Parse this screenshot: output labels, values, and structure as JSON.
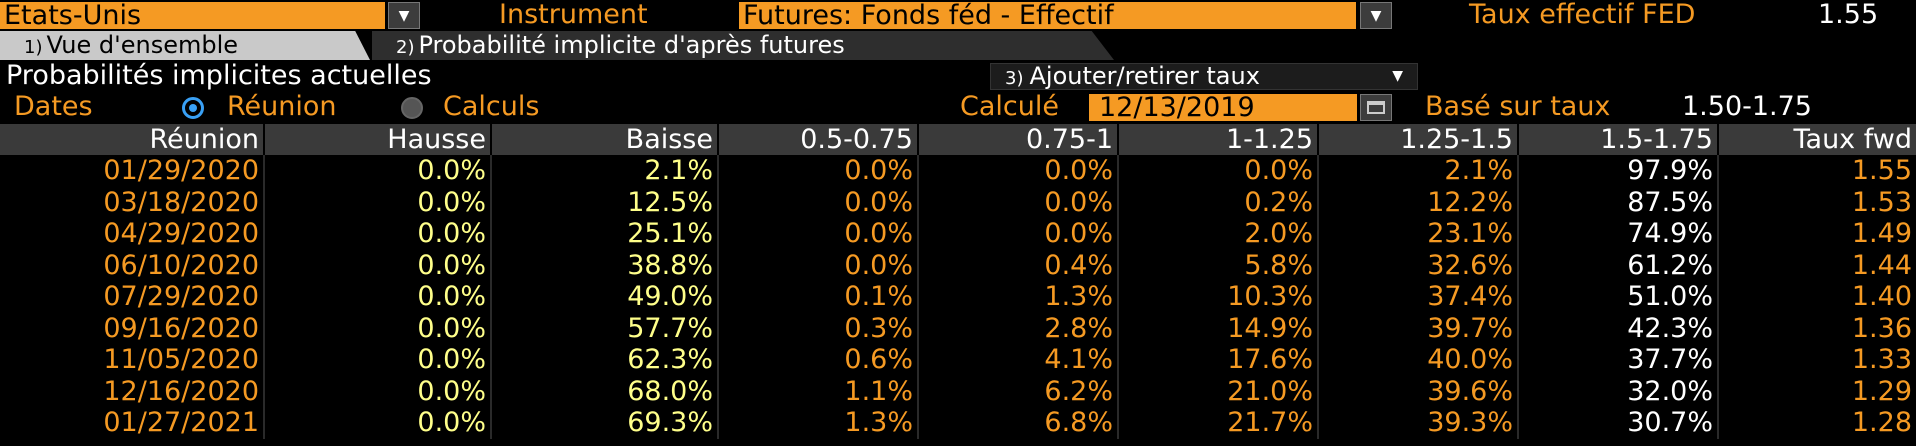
{
  "topbar": {
    "region_value": "Etats-Unis",
    "instrument_label": "Instrument",
    "instrument_value": "Futures: Fonds féd - Effectif",
    "fed_rate_label": "Taux effectif FED",
    "fed_rate_value": "1.55"
  },
  "tabs": [
    {
      "num": "1)",
      "label": "Vue d'ensemble"
    },
    {
      "num": "2)",
      "label": "Probabilité implicite d'après futures"
    }
  ],
  "section": {
    "title": "Probabilités implicites actuelles",
    "menu_num": "3)",
    "menu_label": "Ajouter/retirer taux",
    "menu_caret": "▼"
  },
  "options": {
    "dates_label": "Dates",
    "radio_reunion": "Réunion",
    "radio_calculs": "Calculs",
    "calc_label": "Calculé",
    "calc_date": "12/13/2019",
    "base_label": "Basé sur taux",
    "base_value": "1.50-1.75"
  },
  "table": {
    "headers": [
      "Réunion",
      "Hausse",
      "Baisse",
      "0.5-0.75",
      "0.75-1",
      "1-1.25",
      "1.25-1.5",
      "1.5-1.75",
      "Taux fwd"
    ],
    "rows": [
      [
        "01/29/2020",
        "0.0%",
        "2.1%",
        "0.0%",
        "0.0%",
        "0.0%",
        "2.1%",
        "97.9%",
        "1.55"
      ],
      [
        "03/18/2020",
        "0.0%",
        "12.5%",
        "0.0%",
        "0.0%",
        "0.2%",
        "12.2%",
        "87.5%",
        "1.53"
      ],
      [
        "04/29/2020",
        "0.0%",
        "25.1%",
        "0.0%",
        "0.0%",
        "2.0%",
        "23.1%",
        "74.9%",
        "1.49"
      ],
      [
        "06/10/2020",
        "0.0%",
        "38.8%",
        "0.0%",
        "0.4%",
        "5.8%",
        "32.6%",
        "61.2%",
        "1.44"
      ],
      [
        "07/29/2020",
        "0.0%",
        "49.0%",
        "0.1%",
        "1.3%",
        "10.3%",
        "37.4%",
        "51.0%",
        "1.40"
      ],
      [
        "09/16/2020",
        "0.0%",
        "57.7%",
        "0.3%",
        "2.8%",
        "14.9%",
        "39.7%",
        "42.3%",
        "1.36"
      ],
      [
        "11/05/2020",
        "0.0%",
        "62.3%",
        "0.6%",
        "4.1%",
        "17.6%",
        "40.0%",
        "37.7%",
        "1.33"
      ],
      [
        "12/16/2020",
        "0.0%",
        "68.0%",
        "1.1%",
        "6.2%",
        "21.0%",
        "39.6%",
        "32.0%",
        "1.29"
      ],
      [
        "01/27/2021",
        "0.0%",
        "69.3%",
        "1.3%",
        "6.8%",
        "21.7%",
        "39.3%",
        "30.7%",
        "1.28"
      ]
    ]
  },
  "colors": {
    "accent_orange": "#f59a23",
    "value_yellow": "#ffff8a",
    "radio_blue": "#39a0f5",
    "header_gray": "#3a3a3a"
  }
}
